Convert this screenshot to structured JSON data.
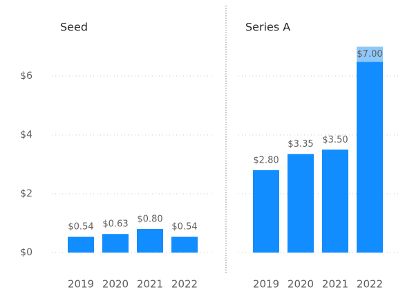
{
  "chart_data": [
    {
      "type": "bar",
      "title": "Seed",
      "categories": [
        "2019",
        "2020",
        "2021",
        "2022"
      ],
      "values": [
        0.54,
        0.63,
        0.8,
        0.54
      ],
      "value_labels": [
        "$0.54",
        "$0.63",
        "$0.80",
        "$0.54"
      ],
      "color": "#118dff",
      "ylim": [
        0,
        7
      ],
      "yticks": [
        {
          "value": 0,
          "label": "$0"
        },
        {
          "value": 2,
          "label": "$2"
        },
        {
          "value": 4,
          "label": "$4"
        },
        {
          "value": 6,
          "label": "$6"
        }
      ],
      "grid": true
    },
    {
      "type": "bar",
      "title": "Series A",
      "categories": [
        "2019",
        "2020",
        "2021",
        "2022"
      ],
      "values": [
        2.8,
        3.35,
        3.5,
        7.0
      ],
      "value_labels": [
        "$2.80",
        "$3.35",
        "$3.50",
        "$7.00"
      ],
      "color": "#118dff",
      "ylim": [
        0,
        7
      ],
      "yticks": [
        0,
        2,
        4,
        6
      ],
      "grid": true
    }
  ]
}
